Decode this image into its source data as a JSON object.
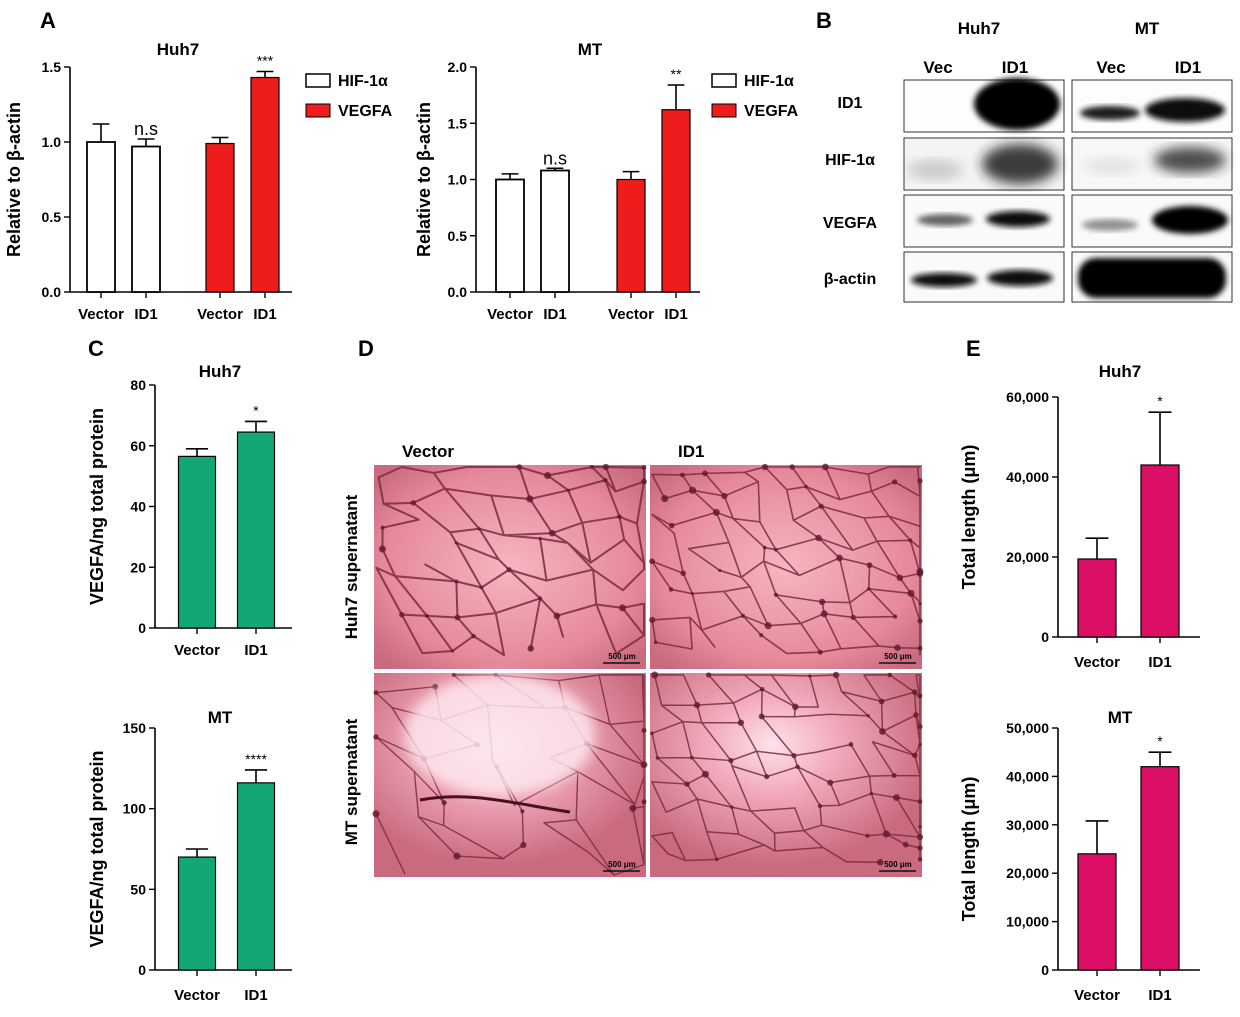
{
  "panels": {
    "A": "A",
    "B": "B",
    "C": "C",
    "D": "D",
    "E": "E"
  },
  "chart_data": [
    {
      "id": "A-huh7",
      "type": "bar",
      "title": "Huh7",
      "ylabel": "Relative to β-actin",
      "ylim": [
        0,
        1.5
      ],
      "yticks": [
        "0.0",
        "0.5",
        "1.0",
        "1.5"
      ],
      "groups": [
        "HIF-1α",
        "VEGFA"
      ],
      "categories": [
        "Vector",
        "ID1",
        "Vector",
        "ID1"
      ],
      "values": [
        1.0,
        0.97,
        0.99,
        1.43
      ],
      "errors": [
        0.12,
        0.05,
        0.04,
        0.04
      ],
      "colors": [
        "#ffffff",
        "#ffffff",
        "#ee1c1c",
        "#ee1c1c"
      ],
      "annotations": [
        "",
        "n.s",
        "",
        "***"
      ],
      "legend": [
        {
          "name": "HIF-1α",
          "color": "#ffffff"
        },
        {
          "name": "VEGFA",
          "color": "#ee1c1c"
        }
      ]
    },
    {
      "id": "A-mt",
      "type": "bar",
      "title": "MT",
      "ylabel": "Relative to β-actin",
      "ylim": [
        0,
        2.0
      ],
      "yticks": [
        "0.0",
        "0.5",
        "1.0",
        "1.5",
        "2.0"
      ],
      "categories": [
        "Vector",
        "ID1",
        "Vector",
        "ID1"
      ],
      "values": [
        1.0,
        1.08,
        1.0,
        1.62
      ],
      "errors": [
        0.05,
        0.02,
        0.07,
        0.22
      ],
      "colors": [
        "#ffffff",
        "#ffffff",
        "#ee1c1c",
        "#ee1c1c"
      ],
      "annotations": [
        "",
        "n.s",
        "",
        "**"
      ],
      "legend": [
        {
          "name": "HIF-1α",
          "color": "#ffffff"
        },
        {
          "name": "VEGFA",
          "color": "#ee1c1c"
        }
      ]
    },
    {
      "id": "C-huh7",
      "type": "bar",
      "title": "Huh7",
      "ylabel": "VEGFA/ng total protein",
      "ylim": [
        0,
        80
      ],
      "yticks": [
        "0",
        "20",
        "40",
        "60",
        "80"
      ],
      "categories": [
        "Vector",
        "ID1"
      ],
      "values": [
        56.5,
        64.5
      ],
      "errors": [
        2.5,
        3.5
      ],
      "colors": [
        "#13a873",
        "#13a873"
      ],
      "annotations": [
        "",
        "*"
      ]
    },
    {
      "id": "C-mt",
      "type": "bar",
      "title": "MT",
      "ylabel": "VEGFA/ng total protein",
      "ylim": [
        0,
        150
      ],
      "yticks": [
        "0",
        "50",
        "100",
        "150"
      ],
      "categories": [
        "Vector",
        "ID1"
      ],
      "values": [
        70,
        116
      ],
      "errors": [
        5,
        8
      ],
      "colors": [
        "#13a873",
        "#13a873"
      ],
      "annotations": [
        "",
        "****"
      ]
    },
    {
      "id": "E-huh7",
      "type": "bar",
      "title": "Huh7",
      "ylabel": "Total length (μm)",
      "ylim": [
        0,
        60000
      ],
      "yticks": [
        "0",
        "20,000",
        "40,000",
        "60,000"
      ],
      "categories": [
        "Vector",
        "ID1"
      ],
      "values": [
        19500,
        43000
      ],
      "errors": [
        5200,
        13200
      ],
      "colors": [
        "#dc0f66",
        "#dc0f66"
      ],
      "annotations": [
        "",
        "*"
      ]
    },
    {
      "id": "E-mt",
      "type": "bar",
      "title": "MT",
      "ylabel": "Total length (μm)",
      "ylim": [
        0,
        50000
      ],
      "yticks": [
        "0",
        "10,000",
        "20,000",
        "30,000",
        "40,000",
        "50,000"
      ],
      "categories": [
        "Vector",
        "ID1"
      ],
      "values": [
        24000,
        42000
      ],
      "errors": [
        6800,
        3000
      ],
      "colors": [
        "#dc0f66",
        "#dc0f66"
      ],
      "annotations": [
        "",
        "*"
      ]
    }
  ],
  "blot": {
    "cell_lines": [
      "Huh7",
      "MT"
    ],
    "lanes": [
      "Vec",
      "ID1",
      "Vec",
      "ID1"
    ],
    "proteins": [
      "ID1",
      "HIF-1α",
      "VEGFA",
      "β-actin"
    ]
  },
  "micro": {
    "columns": [
      "Vector",
      "ID1"
    ],
    "rows": [
      "Huh7 supernatant",
      "MT supernatant"
    ],
    "scale_bar": "500 μm"
  }
}
